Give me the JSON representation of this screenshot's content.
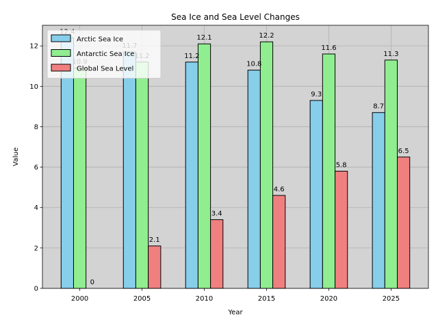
{
  "chart_data": {
    "type": "bar",
    "title": "Sea Ice and Sea Level Changes",
    "xlabel": "Year",
    "ylabel": "Value",
    "categories": [
      "2000",
      "2005",
      "2010",
      "2015",
      "2020",
      "2025"
    ],
    "series": [
      {
        "name": "Arctic Sea Ice",
        "color": "#87ceeb",
        "values": [
          12.4,
          11.7,
          11.2,
          10.8,
          9.3,
          8.7
        ]
      },
      {
        "name": "Antarctic Sea Ice",
        "color": "#90ee90",
        "values": [
          10.9,
          11.2,
          12.1,
          12.2,
          11.6,
          11.3
        ]
      },
      {
        "name": "Global Sea Level",
        "color": "#f08080",
        "values": [
          0,
          2.1,
          3.4,
          4.6,
          5.8,
          6.5
        ]
      }
    ],
    "ylim": [
      0,
      13.02
    ],
    "yticks": [
      0,
      2,
      4,
      6,
      8,
      10,
      12
    ],
    "grid": true,
    "legend_position": "top-left",
    "plot_background": "#d3d3d3"
  }
}
